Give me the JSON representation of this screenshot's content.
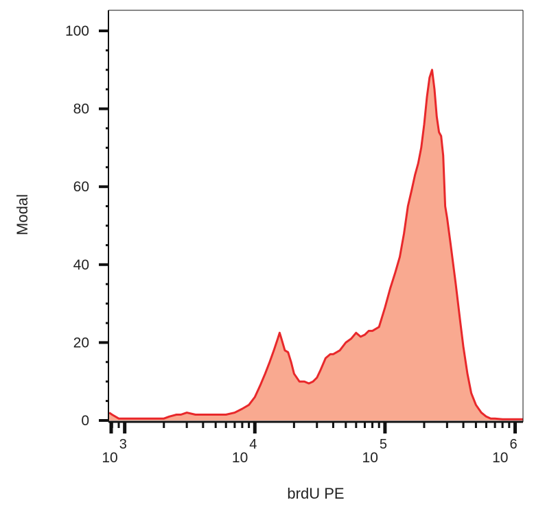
{
  "chart_data": {
    "type": "area",
    "xlabel": "brdU PE",
    "ylabel": "Modal",
    "x_scale": "log",
    "xlim": [
      750,
      1150000
    ],
    "ylim": [
      0,
      105
    ],
    "x_ticks": [
      {
        "base": "10",
        "exp": "3",
        "value": 1000
      },
      {
        "base": "10",
        "exp": "4",
        "value": 10000
      },
      {
        "base": "10",
        "exp": "5",
        "value": 100000
      },
      {
        "base": "10",
        "exp": "6",
        "value": 1000000
      }
    ],
    "y_ticks": [
      "0",
      "20",
      "40",
      "60",
      "80",
      "100"
    ],
    "y_tick_values": [
      0,
      20,
      40,
      60,
      80,
      100
    ],
    "grid": false,
    "colors": {
      "line": "#e8282b",
      "fill": "#f9a990",
      "axis": "#111111"
    },
    "series": [
      {
        "x": [
          760,
          800,
          900,
          1000,
          1200,
          1500,
          1800,
          2000,
          2200,
          2500,
          2700,
          3000,
          3500,
          4000,
          4500,
          5000,
          6000,
          7000,
          8000,
          9000,
          10000,
          11000,
          12000,
          13000,
          14000,
          15000,
          15500,
          16000,
          17000,
          18000,
          19000,
          20000,
          22000,
          24000,
          26000,
          28000,
          30000,
          32000,
          35000,
          38000,
          40000,
          45000,
          50000,
          55000,
          60000,
          65000,
          70000,
          75000,
          80000,
          90000,
          100000,
          110000,
          120000,
          130000,
          140000,
          150000,
          160000,
          170000,
          180000,
          190000,
          200000,
          210000,
          220000,
          230000,
          240000,
          250000,
          260000,
          270000,
          280000,
          290000,
          300000,
          320000,
          350000,
          380000,
          400000,
          430000,
          460000,
          500000,
          550000,
          600000,
          650000,
          700000,
          800000,
          900000,
          1000000,
          1150000
        ],
        "y": [
          2,
          1.5,
          0.5,
          0.5,
          0.5,
          0.5,
          0.5,
          0.5,
          1,
          1.5,
          1.5,
          2,
          1.5,
          1.5,
          1.5,
          1.5,
          1.5,
          2,
          3,
          4,
          6,
          9,
          12,
          15,
          18,
          21,
          22.5,
          21,
          18,
          17.5,
          15,
          12,
          10,
          10,
          9.5,
          10,
          11,
          13,
          16,
          17,
          17,
          18,
          20,
          21,
          22.5,
          21.5,
          22,
          23,
          23,
          24,
          29,
          34,
          38,
          42,
          48,
          55,
          59,
          63,
          66,
          70,
          76,
          83,
          88,
          90,
          85,
          78,
          74,
          73,
          68,
          55,
          52,
          45,
          35,
          25,
          19,
          12,
          7,
          4,
          2,
          1,
          0.5,
          0.5,
          0.3,
          0.3,
          0.3,
          0.3
        ]
      }
    ]
  }
}
